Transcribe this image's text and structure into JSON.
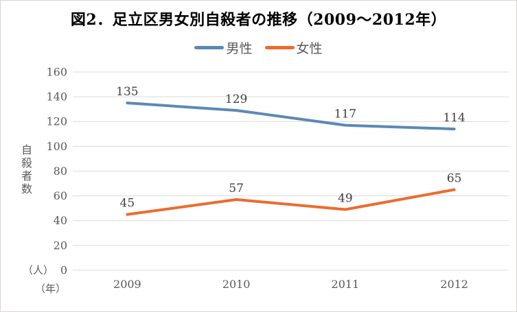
{
  "chart_data": {
    "type": "line",
    "title": "図2．足立区男女別自殺者の推移（2009～2012年）",
    "categories": [
      "2009",
      "2010",
      "2011",
      "2012"
    ],
    "series": [
      {
        "name": "男性",
        "color": "#5B89B4",
        "values": [
          135,
          129,
          117,
          114
        ]
      },
      {
        "name": "女性",
        "color": "#EC6B2D",
        "values": [
          45,
          57,
          49,
          65
        ]
      }
    ],
    "ylabel": "自殺者数",
    "y_unit_label": "（人）",
    "x_unit_label": "（年）",
    "ylim": [
      0,
      160
    ],
    "yticks": [
      0,
      20,
      40,
      60,
      80,
      100,
      120,
      140,
      160
    ],
    "grid": true,
    "legend_position": "top",
    "data_labels": true
  },
  "colors": {
    "male_line": "#5B89B4",
    "female_line": "#EC6B2D",
    "gridline": "#D9D9D9",
    "tick_label": "#595959",
    "data_label": "#3F3F3F",
    "title_text": "#000000",
    "border": "#D9D6D3",
    "background": "#FFFFFF"
  }
}
